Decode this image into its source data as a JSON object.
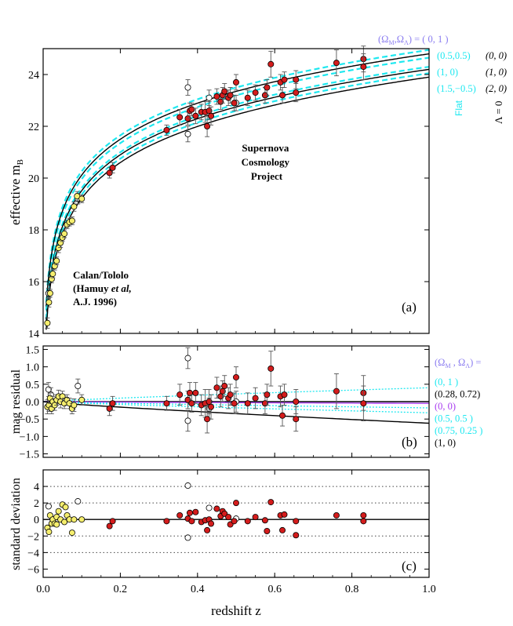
{
  "colors": {
    "cyan": "#1ee8f0",
    "purple": "#8a7cf0",
    "magenta": "#a83cf0",
    "red": "#d41c1c",
    "yellow": "#f5ee6e",
    "black": "#000000",
    "dotted": "#444444"
  },
  "chart_data": [
    {
      "id": "a",
      "type": "scatter",
      "panel_label": "(a)",
      "ylabel": "effective  m",
      "ylabel_sub": "B",
      "xlim": [
        0,
        1.0
      ],
      "ylim": [
        14,
        25
      ],
      "yticks": [
        14,
        16,
        18,
        20,
        22,
        24
      ],
      "legend_title": "(Ω",
      "legend_title_m": "M",
      "legend_title_mid": ",Ω",
      "legend_title_l": "Λ",
      "legend_title_end": ") = ( 0,   1 )",
      "legend_cyan": [
        "(0.5,0.5)",
        "(1,    0)",
        "(1.5,−0.5)"
      ],
      "legend_black": [
        "(0, 0)",
        "(1, 0)",
        "(2, 0)"
      ],
      "flat_label": "Flat",
      "lambda_label": "Λ = 0",
      "annotation_scp": [
        "Supernova",
        "Cosmology",
        "Project"
      ],
      "annotation_ct_1": "Calan/Tololo",
      "annotation_ct_2a": "(Hamuy ",
      "annotation_ct_2b": "et al,",
      "annotation_ct_3": "A.J. 1996)",
      "models": [
        {
          "name": "(0,1)",
          "color": "cyan",
          "dashed": true,
          "m_at_1": 24.95
        },
        {
          "name": "(0.5,0.5)",
          "color": "cyan",
          "dashed": true,
          "m_at_1": 24.65
        },
        {
          "name": "(0,0)",
          "color": "black",
          "dashed": false,
          "m_at_1": 24.8
        },
        {
          "name": "(1,0)",
          "color": "cyan",
          "dashed": true,
          "m_at_1": 24.3
        },
        {
          "name": "(1,0)",
          "color": "black",
          "dashed": false,
          "m_at_1": 24.2
        },
        {
          "name": "(1.5,-0.5)",
          "color": "cyan",
          "dashed": true,
          "m_at_1": 24.05
        },
        {
          "name": "(2,0)",
          "color": "black",
          "dashed": false,
          "m_at_1": 23.9
        }
      ],
      "calan_tololo": [
        {
          "z": 0.011,
          "m": 14.4,
          "e": 0.2
        },
        {
          "z": 0.015,
          "m": 15.2,
          "e": 0.18
        },
        {
          "z": 0.018,
          "m": 15.55,
          "e": 0.15
        },
        {
          "z": 0.022,
          "m": 16.1,
          "e": 0.15
        },
        {
          "z": 0.025,
          "m": 16.3,
          "e": 0.15
        },
        {
          "z": 0.03,
          "m": 16.6,
          "e": 0.15
        },
        {
          "z": 0.035,
          "m": 16.8,
          "e": 0.15
        },
        {
          "z": 0.04,
          "m": 17.3,
          "e": 0.18
        },
        {
          "z": 0.045,
          "m": 17.5,
          "e": 0.18
        },
        {
          "z": 0.05,
          "m": 17.7,
          "e": 0.15
        },
        {
          "z": 0.055,
          "m": 17.85,
          "e": 0.15
        },
        {
          "z": 0.062,
          "m": 18.2,
          "e": 0.15
        },
        {
          "z": 0.068,
          "m": 18.3,
          "e": 0.15
        },
        {
          "z": 0.075,
          "m": 18.35,
          "e": 0.15
        },
        {
          "z": 0.08,
          "m": 18.9,
          "e": 0.18
        },
        {
          "z": 0.088,
          "m": 19.3,
          "e": 0.18
        },
        {
          "z": 0.1,
          "m": 19.2,
          "e": 0.15
        }
      ],
      "calan_open": [
        {
          "z": 0.014,
          "m": 15.55,
          "e": 0.2
        },
        {
          "z": 0.09,
          "m": 19.2,
          "e": 0.2
        }
      ],
      "scp": [
        {
          "z": 0.172,
          "m": 20.2,
          "e": 0.2
        },
        {
          "z": 0.18,
          "m": 20.4,
          "e": 0.2
        },
        {
          "z": 0.32,
          "m": 21.85,
          "e": 0.2
        },
        {
          "z": 0.354,
          "m": 22.35,
          "e": 0.3
        },
        {
          "z": 0.375,
          "m": 22.3,
          "e": 0.25
        },
        {
          "z": 0.38,
          "m": 22.6,
          "e": 0.3
        },
        {
          "z": 0.385,
          "m": 22.65,
          "e": 0.25
        },
        {
          "z": 0.395,
          "m": 22.4,
          "e": 0.3
        },
        {
          "z": 0.41,
          "m": 22.55,
          "e": 0.3
        },
        {
          "z": 0.42,
          "m": 22.55,
          "e": 0.4
        },
        {
          "z": 0.425,
          "m": 22.0,
          "e": 0.4
        },
        {
          "z": 0.43,
          "m": 22.6,
          "e": 0.35
        },
        {
          "z": 0.435,
          "m": 22.4,
          "e": 0.35
        },
        {
          "z": 0.45,
          "m": 23.15,
          "e": 0.3
        },
        {
          "z": 0.46,
          "m": 22.95,
          "e": 0.3
        },
        {
          "z": 0.465,
          "m": 23.2,
          "e": 0.3
        },
        {
          "z": 0.47,
          "m": 23.35,
          "e": 0.3
        },
        {
          "z": 0.48,
          "m": 23.1,
          "e": 0.3
        },
        {
          "z": 0.485,
          "m": 23.2,
          "e": 0.3
        },
        {
          "z": 0.495,
          "m": 22.9,
          "e": 0.3
        },
        {
          "z": 0.5,
          "m": 23.7,
          "e": 0.3
        },
        {
          "z": 0.53,
          "m": 23.1,
          "e": 0.3
        },
        {
          "z": 0.55,
          "m": 23.3,
          "e": 0.3
        },
        {
          "z": 0.575,
          "m": 23.2,
          "e": 0.3
        },
        {
          "z": 0.58,
          "m": 23.5,
          "e": 0.3
        },
        {
          "z": 0.59,
          "m": 24.4,
          "e": 0.5
        },
        {
          "z": 0.615,
          "m": 23.7,
          "e": 0.3
        },
        {
          "z": 0.62,
          "m": 23.2,
          "e": 0.3
        },
        {
          "z": 0.625,
          "m": 23.8,
          "e": 0.3
        },
        {
          "z": 0.655,
          "m": 23.3,
          "e": 0.35
        },
        {
          "z": 0.655,
          "m": 23.8,
          "e": 0.35
        },
        {
          "z": 0.76,
          "m": 24.45,
          "e": 0.5
        },
        {
          "z": 0.83,
          "m": 24.6,
          "e": 0.5
        },
        {
          "z": 0.83,
          "m": 24.3,
          "e": 0.5
        }
      ],
      "scp_open": [
        {
          "z": 0.375,
          "m": 23.5,
          "e": 0.3
        },
        {
          "z": 0.375,
          "m": 21.7,
          "e": 0.3
        },
        {
          "z": 0.43,
          "m": 23.1,
          "e": 0.3
        },
        {
          "z": 0.5,
          "m": 22.9,
          "e": 0.3
        }
      ]
    },
    {
      "id": "b",
      "type": "scatter",
      "panel_label": "(b)",
      "ylabel": "mag residual",
      "xlim": [
        0,
        1.0
      ],
      "ylim": [
        -1.6,
        1.6
      ],
      "yticks": [
        -1.5,
        -1.0,
        -0.5,
        0.0,
        0.5,
        1.0,
        1.5
      ],
      "legend_title": "(Ω",
      "legend_title_m": "M",
      "legend_title_mid": " , Ω",
      "legend_title_l": "Λ",
      "legend_title_end": ") =",
      "legend_entries": [
        {
          "text": "(0,      1 )",
          "color": "cyan"
        },
        {
          "text": "(0.28,   0.72)",
          "color": "black"
        },
        {
          "text": "(0,       0)",
          "color": "magenta"
        },
        {
          "text": "(0.5,    0.5 )",
          "color": "cyan"
        },
        {
          "text": "(0.75,  0.25 )",
          "color": "cyan"
        },
        {
          "text": "(1,       0)",
          "color": "black"
        }
      ],
      "models": [
        {
          "name": "(0,1)",
          "color": "cyan",
          "style": "dotted",
          "r_at_1": 0.4
        },
        {
          "name": "(0.28,0.72)",
          "color": "black",
          "style": "solid",
          "r_at_1": 0.0
        },
        {
          "name": "(0,0)",
          "color": "magenta",
          "style": "solid",
          "r_at_1": -0.05
        },
        {
          "name": "(0.5,0.5)",
          "color": "cyan",
          "style": "dotted",
          "r_at_1": -0.18
        },
        {
          "name": "(0.75,0.25)",
          "color": "cyan",
          "style": "dotted",
          "r_at_1": -0.32
        },
        {
          "name": "(1,0)",
          "color": "black",
          "style": "solid",
          "r_at_1": -0.62
        }
      ],
      "calan_tololo": [
        {
          "z": 0.011,
          "r": -0.15,
          "e": 0.2
        },
        {
          "z": 0.015,
          "r": -0.1,
          "e": 0.18
        },
        {
          "z": 0.018,
          "r": 0.1,
          "e": 0.15
        },
        {
          "z": 0.022,
          "r": -0.2,
          "e": 0.15
        },
        {
          "z": 0.025,
          "r": 0.0,
          "e": 0.15
        },
        {
          "z": 0.03,
          "r": -0.1,
          "e": 0.15
        },
        {
          "z": 0.035,
          "r": 0.05,
          "e": 0.15
        },
        {
          "z": 0.04,
          "r": 0.15,
          "e": 0.18
        },
        {
          "z": 0.045,
          "r": 0.0,
          "e": 0.18
        },
        {
          "z": 0.05,
          "r": 0.15,
          "e": 0.15
        },
        {
          "z": 0.055,
          "r": -0.05,
          "e": 0.15
        },
        {
          "z": 0.062,
          "r": 0.05,
          "e": 0.15
        },
        {
          "z": 0.068,
          "r": -0.05,
          "e": 0.15
        },
        {
          "z": 0.075,
          "r": -0.2,
          "e": 0.15
        },
        {
          "z": 0.08,
          "r": -0.1,
          "e": 0.18
        },
        {
          "z": 0.1,
          "r": 0.05,
          "e": 0.15
        }
      ],
      "calan_open": [
        {
          "z": 0.014,
          "r": 0.35,
          "e": 0.2
        },
        {
          "z": 0.02,
          "r": 0.2,
          "e": 0.2
        },
        {
          "z": 0.09,
          "r": 0.45,
          "e": 0.2
        }
      ],
      "scp": [
        {
          "z": 0.172,
          "r": -0.2,
          "e": 0.2
        },
        {
          "z": 0.18,
          "r": -0.05,
          "e": 0.2
        },
        {
          "z": 0.32,
          "r": -0.05,
          "e": 0.2
        },
        {
          "z": 0.354,
          "r": 0.2,
          "e": 0.3
        },
        {
          "z": 0.375,
          "r": 0.05,
          "e": 0.25
        },
        {
          "z": 0.38,
          "r": 0.25,
          "e": 0.3
        },
        {
          "z": 0.385,
          "r": -0.05,
          "e": 0.25
        },
        {
          "z": 0.395,
          "r": 0.25,
          "e": 0.3
        },
        {
          "z": 0.41,
          "r": -0.1,
          "e": 0.3
        },
        {
          "z": 0.42,
          "r": -0.05,
          "e": 0.4
        },
        {
          "z": 0.425,
          "r": -0.5,
          "e": 0.4
        },
        {
          "z": 0.43,
          "r": 0.0,
          "e": 0.35
        },
        {
          "z": 0.435,
          "r": -0.15,
          "e": 0.35
        },
        {
          "z": 0.45,
          "r": 0.4,
          "e": 0.3
        },
        {
          "z": 0.46,
          "r": 0.15,
          "e": 0.3
        },
        {
          "z": 0.465,
          "r": 0.3,
          "e": 0.3
        },
        {
          "z": 0.47,
          "r": 0.45,
          "e": 0.3
        },
        {
          "z": 0.48,
          "r": 0.1,
          "e": 0.3
        },
        {
          "z": 0.485,
          "r": 0.2,
          "e": 0.3
        },
        {
          "z": 0.495,
          "r": -0.05,
          "e": 0.3
        },
        {
          "z": 0.5,
          "r": 0.7,
          "e": 0.3
        },
        {
          "z": 0.53,
          "r": -0.05,
          "e": 0.3
        },
        {
          "z": 0.55,
          "r": 0.1,
          "e": 0.3
        },
        {
          "z": 0.575,
          "r": -0.05,
          "e": 0.3
        },
        {
          "z": 0.58,
          "r": 0.2,
          "e": 0.3
        },
        {
          "z": 0.59,
          "r": 0.95,
          "e": 0.5
        },
        {
          "z": 0.615,
          "r": 0.15,
          "e": 0.3
        },
        {
          "z": 0.62,
          "r": -0.4,
          "e": 0.3
        },
        {
          "z": 0.625,
          "r": 0.2,
          "e": 0.3
        },
        {
          "z": 0.655,
          "r": -0.5,
          "e": 0.35
        },
        {
          "z": 0.655,
          "r": 0.0,
          "e": 0.35
        },
        {
          "z": 0.76,
          "r": 0.3,
          "e": 0.5
        },
        {
          "z": 0.83,
          "r": 0.25,
          "e": 0.5
        },
        {
          "z": 0.83,
          "r": -0.05,
          "e": 0.5
        }
      ],
      "scp_open": [
        {
          "z": 0.375,
          "r": 1.25,
          "e": 0.3
        },
        {
          "z": 0.375,
          "r": -0.55,
          "e": 0.3
        },
        {
          "z": 0.43,
          "r": -0.2,
          "e": 0.3
        },
        {
          "z": 0.5,
          "r": 0.0,
          "e": 0.3
        }
      ]
    },
    {
      "id": "c",
      "type": "scatter",
      "panel_label": "(c)",
      "ylabel": "standard deviation",
      "xlabel": "redshift  z",
      "xlim": [
        0,
        1.0
      ],
      "xticks": [
        0.0,
        0.2,
        0.4,
        0.6,
        0.8,
        1.0
      ],
      "ylim": [
        -7,
        6
      ],
      "yticks": [
        -6,
        -4,
        -2,
        0,
        2,
        4
      ],
      "dotted_levels": [
        -4,
        -2,
        2,
        4
      ],
      "calan_tololo": [
        {
          "z": 0.011,
          "s": -1.0
        },
        {
          "z": 0.015,
          "s": -1.5
        },
        {
          "z": 0.018,
          "s": 0.5
        },
        {
          "z": 0.022,
          "s": -0.5
        },
        {
          "z": 0.025,
          "s": 0.0
        },
        {
          "z": 0.03,
          "s": -0.5
        },
        {
          "z": 0.035,
          "s": 0.3
        },
        {
          "z": 0.04,
          "s": 1.0
        },
        {
          "z": 0.045,
          "s": 0.0
        },
        {
          "z": 0.05,
          "s": 1.8
        },
        {
          "z": 0.055,
          "s": -0.3
        },
        {
          "z": 0.062,
          "s": 0.5
        },
        {
          "z": 0.068,
          "s": 0.0
        },
        {
          "z": 0.075,
          "s": -1.6
        },
        {
          "z": 0.08,
          "s": 0.0
        },
        {
          "z": 0.1,
          "s": 0.0
        },
        {
          "z": 0.035,
          "s": -0.6
        },
        {
          "z": 0.058,
          "s": 1.5
        }
      ],
      "calan_open": [
        {
          "z": 0.014,
          "s": 1.6
        },
        {
          "z": 0.09,
          "s": 2.2
        }
      ],
      "scp": [
        {
          "z": 0.172,
          "s": -0.8
        },
        {
          "z": 0.18,
          "s": -0.2
        },
        {
          "z": 0.32,
          "s": -0.2
        },
        {
          "z": 0.354,
          "s": 0.5
        },
        {
          "z": 0.375,
          "s": 0.1
        },
        {
          "z": 0.38,
          "s": 0.8
        },
        {
          "z": 0.385,
          "s": -0.2
        },
        {
          "z": 0.395,
          "s": 0.9
        },
        {
          "z": 0.41,
          "s": -0.3
        },
        {
          "z": 0.42,
          "s": -0.1
        },
        {
          "z": 0.425,
          "s": -1.3
        },
        {
          "z": 0.43,
          "s": 0.0
        },
        {
          "z": 0.435,
          "s": -0.5
        },
        {
          "z": 0.45,
          "s": 1.3
        },
        {
          "z": 0.46,
          "s": 0.4
        },
        {
          "z": 0.465,
          "s": 1.0
        },
        {
          "z": 0.47,
          "s": 0.7
        },
        {
          "z": 0.48,
          "s": 0.3
        },
        {
          "z": 0.485,
          "s": -0.6
        },
        {
          "z": 0.495,
          "s": -0.2
        },
        {
          "z": 0.5,
          "s": 2.0
        },
        {
          "z": 0.53,
          "s": -0.2
        },
        {
          "z": 0.55,
          "s": 0.3
        },
        {
          "z": 0.575,
          "s": -0.1
        },
        {
          "z": 0.58,
          "s": -1.4
        },
        {
          "z": 0.59,
          "s": 2.1
        },
        {
          "z": 0.615,
          "s": 0.5
        },
        {
          "z": 0.62,
          "s": -1.3
        },
        {
          "z": 0.625,
          "s": 0.6
        },
        {
          "z": 0.655,
          "s": -1.9
        },
        {
          "z": 0.655,
          "s": -0.2
        },
        {
          "z": 0.76,
          "s": 0.5
        },
        {
          "z": 0.83,
          "s": 0.5
        },
        {
          "z": 0.83,
          "s": -0.2
        }
      ],
      "scp_open": [
        {
          "z": 0.375,
          "s": 4.1
        },
        {
          "z": 0.375,
          "s": -2.2
        },
        {
          "z": 0.43,
          "s": 1.4
        },
        {
          "z": 0.5,
          "s": 0.1
        }
      ]
    }
  ]
}
